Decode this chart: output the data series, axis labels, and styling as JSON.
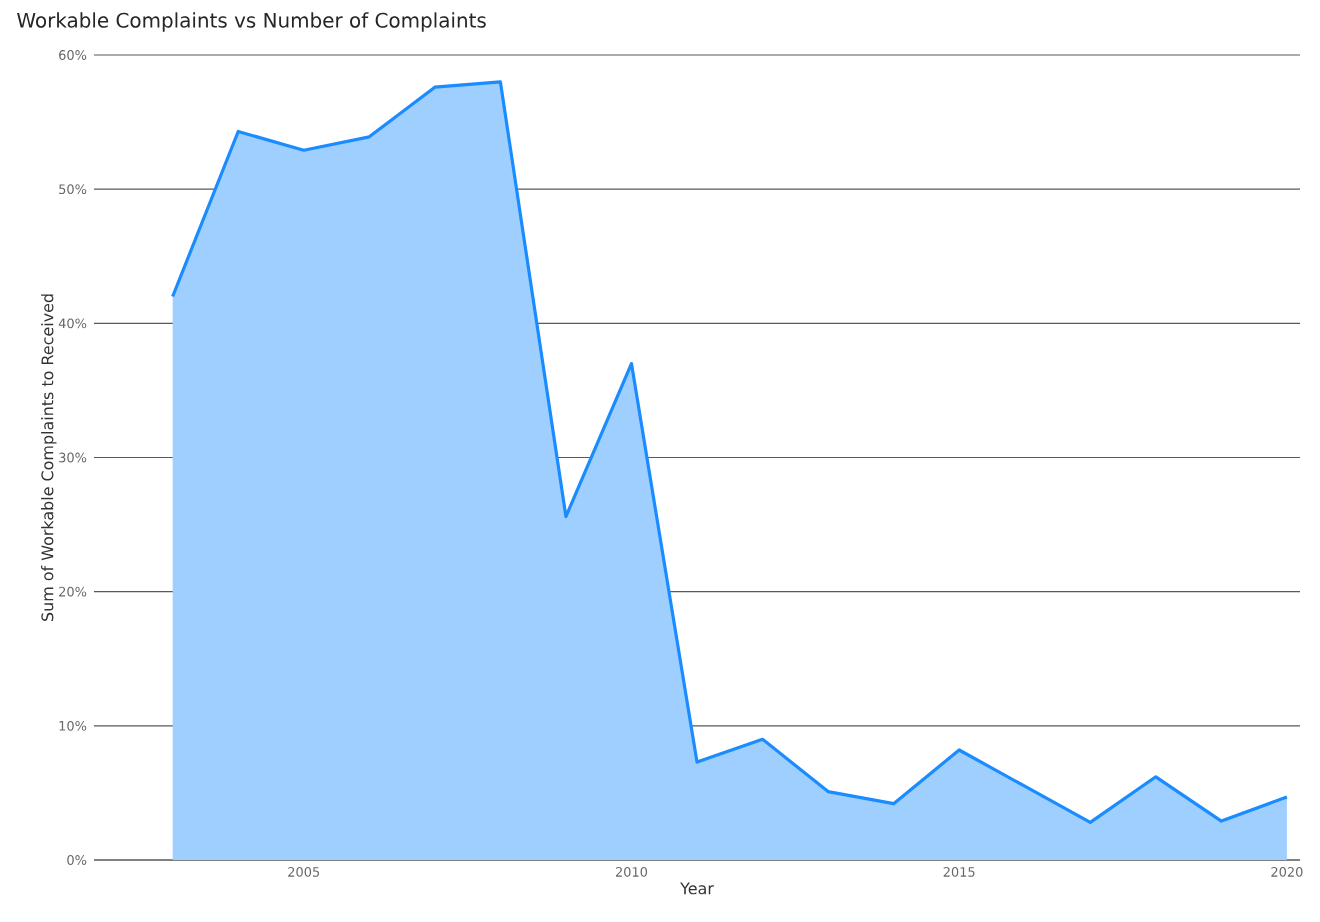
{
  "chart_data": {
    "type": "area",
    "title": "Workable Complaints vs Number of Complaints",
    "xlabel": "Year",
    "ylabel": "Sum of Workable Complaints to Received",
    "x": [
      2003,
      2004,
      2005,
      2006,
      2007,
      2008,
      2009,
      2010,
      2011,
      2012,
      2013,
      2014,
      2015,
      2016,
      2017,
      2018,
      2019,
      2020
    ],
    "series": [
      {
        "color": "#1a8cff",
        "values": [
          42,
          54.3,
          52.9,
          53.9,
          57.6,
          58.0,
          25.6,
          37.0,
          7.3,
          9.0,
          5.1,
          4.2,
          8.2,
          5.5,
          2.8,
          6.2,
          2.9,
          4.7
        ]
      }
    ],
    "xlim": [
      2001.8,
      2020.2
    ],
    "ylim": [
      0,
      60
    ],
    "xticks": [
      2005,
      2010,
      2015,
      2020
    ],
    "yticks": [
      {
        "value": 0,
        "label": "0%"
      },
      {
        "value": 10,
        "label": "10%"
      },
      {
        "value": 20,
        "label": "20%"
      },
      {
        "value": 30,
        "label": "30%"
      },
      {
        "value": 40,
        "label": "40%"
      },
      {
        "value": 50,
        "label": "50%"
      },
      {
        "value": 60,
        "label": "60%"
      }
    ],
    "grid": "y"
  }
}
